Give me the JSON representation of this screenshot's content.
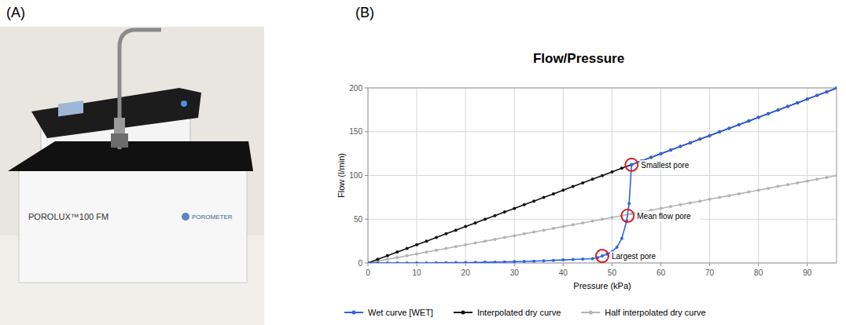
{
  "panel_labels": [
    "(A)",
    "(B)"
  ],
  "photo": {
    "texts": [
      "POROLUX™100 FM",
      "POROMETER"
    ]
  },
  "chart_data": {
    "type": "line",
    "title": "Flow/Pressure",
    "x_label": "Pressure (kPa)",
    "y_label": "Flow (l/min)",
    "xlim": [
      0,
      96
    ],
    "ylim": [
      0,
      200
    ],
    "xticks": [
      0,
      10,
      20,
      30,
      40,
      50,
      60,
      70,
      80,
      90
    ],
    "yticks": [
      0,
      50,
      100,
      150,
      200
    ],
    "grid": true,
    "legend": "bottom",
    "marker": "circle",
    "series": [
      {
        "name": "Wet curve [WET]",
        "color": "#2f62e6",
        "x": [
          0,
          2,
          4,
          6,
          8,
          10,
          12,
          14,
          16,
          18,
          20,
          22,
          24,
          26,
          28,
          30,
          32,
          34,
          36,
          38,
          40,
          42,
          44,
          46,
          47,
          48,
          49,
          50,
          51,
          52,
          53,
          53.5,
          54,
          56,
          58,
          60,
          62,
          64,
          66,
          68,
          70,
          72,
          74,
          76,
          78,
          80,
          82,
          84,
          86,
          88,
          90,
          92,
          94,
          96
        ],
        "values": [
          0,
          0,
          0,
          0,
          0,
          0,
          0,
          0.2,
          0.3,
          0.4,
          0.5,
          0.6,
          0.8,
          1,
          1.2,
          1.5,
          1.8,
          2.1,
          2.5,
          3,
          3.5,
          4,
          4.5,
          5,
          6,
          8,
          10,
          13,
          18,
          28,
          48,
          68,
          112.3,
          116.5,
          120.6,
          124.8,
          129,
          133.1,
          137.3,
          141.4,
          145.6,
          149.8,
          153.9,
          158.1,
          162.2,
          166.4,
          170.6,
          174.7,
          178.9,
          183,
          187.2,
          191.4,
          195.5,
          199.7
        ]
      },
      {
        "name": "Interpolated dry curve",
        "color": "#111111",
        "x": [
          0,
          2,
          4,
          6,
          8,
          10,
          12,
          14,
          16,
          18,
          20,
          22,
          24,
          26,
          28,
          30,
          32,
          34,
          36,
          38,
          40,
          42,
          44,
          46,
          48,
          50,
          52,
          54,
          56,
          58,
          60,
          62,
          64,
          66,
          68,
          70,
          72,
          74,
          76,
          78,
          80,
          82,
          84,
          86,
          88,
          90,
          92,
          94,
          96
        ],
        "values": [
          0,
          4.2,
          8.3,
          12.5,
          16.6,
          20.8,
          25,
          29.1,
          33.3,
          37.4,
          41.6,
          45.8,
          49.9,
          54.1,
          58.2,
          62.4,
          66.6,
          70.7,
          74.9,
          79,
          83.2,
          87.4,
          91.5,
          95.7,
          99.8,
          104,
          108.2,
          112.3,
          116.5,
          120.6,
          124.8,
          129,
          133.1,
          137.3,
          141.4,
          145.6,
          149.8,
          153.9,
          158.1,
          162.2,
          166.4,
          170.6,
          174.7,
          178.9,
          183,
          187.2,
          191.4,
          195.5,
          199.7
        ]
      },
      {
        "name": "Half interpolated dry curve",
        "color": "#b4b4b4",
        "x": [
          0,
          2,
          4,
          6,
          8,
          10,
          12,
          14,
          16,
          18,
          20,
          22,
          24,
          26,
          28,
          30,
          32,
          34,
          36,
          38,
          40,
          42,
          44,
          46,
          48,
          50,
          52,
          54,
          56,
          58,
          60,
          62,
          64,
          66,
          68,
          70,
          72,
          74,
          76,
          78,
          80,
          82,
          84,
          86,
          88,
          90,
          92,
          94,
          96
        ],
        "values": [
          0,
          2.1,
          4.2,
          6.2,
          8.3,
          10.4,
          12.5,
          14.6,
          16.6,
          18.7,
          20.8,
          22.9,
          25,
          27,
          29.1,
          31.2,
          33.3,
          35.4,
          37.4,
          39.5,
          41.6,
          43.7,
          45.8,
          47.8,
          49.9,
          52,
          54.1,
          56.2,
          58.2,
          60.3,
          62.4,
          64.5,
          66.6,
          68.6,
          70.7,
          72.8,
          74.9,
          77,
          79,
          81.1,
          83.2,
          85.3,
          87.4,
          89.4,
          91.5,
          93.6,
          95.7,
          97.8,
          99.8
        ]
      }
    ],
    "annotations": [
      {
        "text": "Smallest pore",
        "x": 54,
        "y": 112.3
      },
      {
        "text": "Mean flow pore",
        "x": 53.2,
        "y": 54
      },
      {
        "text": "Largest pore",
        "x": 48,
        "y": 8
      }
    ]
  }
}
